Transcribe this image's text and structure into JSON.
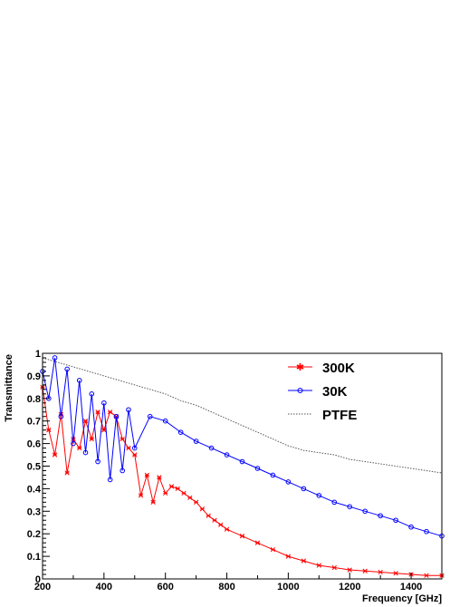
{
  "chart_data": {
    "type": "line",
    "title": "",
    "xlabel": "Frequency [GHz]",
    "ylabel": "Transmittance",
    "xlim": [
      200,
      1500
    ],
    "ylim": [
      0,
      1
    ],
    "x_ticks": [
      "200",
      "400",
      "600",
      "800",
      "1000",
      "1200",
      "1400"
    ],
    "y_ticks": [
      "0",
      "0.1",
      "0.2",
      "0.3",
      "0.4",
      "0.5",
      "0.6",
      "0.7",
      "0.8",
      "0.9",
      "1"
    ],
    "grid": false,
    "legend_position": "top-right",
    "series": [
      {
        "name": "300K",
        "color": "#ff0000",
        "marker": "star",
        "x": [
          200,
          220,
          240,
          260,
          280,
          300,
          320,
          340,
          360,
          380,
          400,
          420,
          440,
          460,
          480,
          500,
          520,
          540,
          560,
          580,
          600,
          620,
          640,
          660,
          680,
          700,
          720,
          740,
          760,
          780,
          800,
          850,
          900,
          950,
          1000,
          1050,
          1100,
          1150,
          1200,
          1250,
          1300,
          1350,
          1400,
          1450,
          1500
        ],
        "y": [
          0.85,
          0.66,
          0.55,
          0.73,
          0.47,
          0.62,
          0.58,
          0.7,
          0.62,
          0.74,
          0.66,
          0.74,
          0.72,
          0.62,
          0.58,
          0.55,
          0.37,
          0.46,
          0.34,
          0.45,
          0.38,
          0.41,
          0.4,
          0.38,
          0.36,
          0.34,
          0.31,
          0.28,
          0.26,
          0.24,
          0.22,
          0.19,
          0.16,
          0.13,
          0.1,
          0.08,
          0.06,
          0.05,
          0.04,
          0.035,
          0.03,
          0.025,
          0.02,
          0.015,
          0.015
        ]
      },
      {
        "name": "30K",
        "color": "#0000ff",
        "marker": "circle",
        "x": [
          200,
          220,
          240,
          260,
          280,
          300,
          320,
          340,
          360,
          380,
          400,
          420,
          440,
          460,
          480,
          500,
          550,
          600,
          650,
          700,
          750,
          800,
          850,
          900,
          950,
          1000,
          1050,
          1100,
          1150,
          1200,
          1250,
          1300,
          1350,
          1400,
          1450,
          1500
        ],
        "y": [
          0.92,
          0.8,
          0.98,
          0.72,
          0.93,
          0.6,
          0.88,
          0.56,
          0.82,
          0.52,
          0.78,
          0.44,
          0.72,
          0.48,
          0.75,
          0.58,
          0.72,
          0.7,
          0.65,
          0.61,
          0.58,
          0.55,
          0.52,
          0.49,
          0.46,
          0.43,
          0.4,
          0.37,
          0.34,
          0.32,
          0.3,
          0.28,
          0.26,
          0.23,
          0.21,
          0.19
        ]
      },
      {
        "name": "PTFE",
        "color": "#555555",
        "marker": "none",
        "dashed": true,
        "x": [
          200,
          250,
          300,
          350,
          400,
          450,
          500,
          550,
          600,
          650,
          700,
          750,
          800,
          850,
          900,
          950,
          1000,
          1050,
          1100,
          1150,
          1200,
          1250,
          1300,
          1350,
          1400,
          1450,
          1500
        ],
        "y": [
          0.98,
          0.96,
          0.94,
          0.92,
          0.9,
          0.88,
          0.86,
          0.84,
          0.82,
          0.79,
          0.77,
          0.74,
          0.71,
          0.68,
          0.65,
          0.62,
          0.59,
          0.57,
          0.56,
          0.55,
          0.53,
          0.52,
          0.51,
          0.5,
          0.49,
          0.48,
          0.47
        ]
      }
    ]
  }
}
